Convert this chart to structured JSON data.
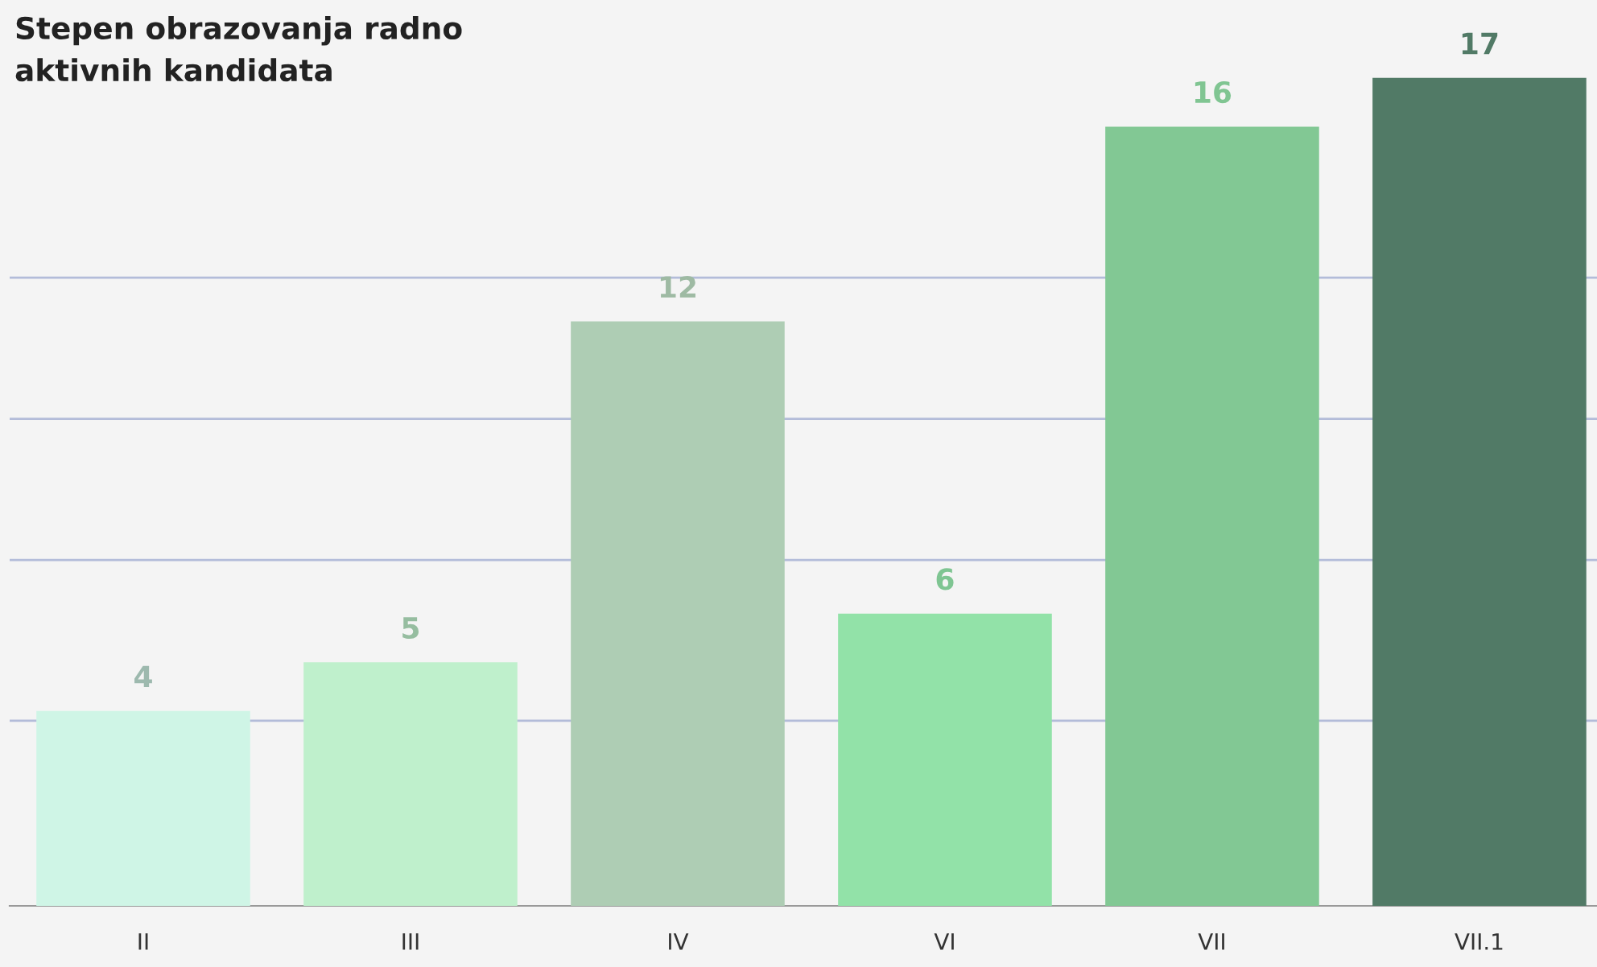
{
  "chart_data": {
    "type": "bar",
    "title": "Stepen obrazovanja radno\naktivnih kandidata",
    "categories": [
      "II",
      "III",
      "IV",
      "VI",
      "VII",
      "VII.1"
    ],
    "values": [
      4,
      5,
      12,
      6,
      16,
      17
    ],
    "colors": [
      "#cff5e6",
      "#bff0cc",
      "#aecdb4",
      "#92e2a8",
      "#82c894",
      "#517a66"
    ],
    "relative": false,
    "ylim": [
      0,
      18.6
    ],
    "yticks": [
      {
        "value": 3.8,
        "label": null
      },
      {
        "value": 7.1,
        "label": null
      },
      {
        "value": 10,
        "label": null
      },
      {
        "value": 12.9,
        "label": null
      }
    ],
    "grid": "y",
    "data_labels": true
  }
}
